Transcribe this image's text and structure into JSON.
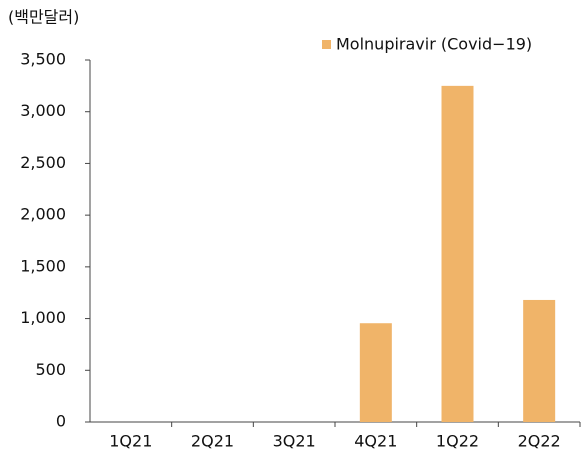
{
  "chart_data": {
    "type": "bar",
    "y_axis_label": "(백만달러)",
    "categories": [
      "1Q21",
      "2Q21",
      "3Q21",
      "4Q21",
      "1Q22",
      "2Q22"
    ],
    "series": [
      {
        "name": "Molnupiravir (Covid−19)",
        "color": "#f0b469",
        "values": [
          0,
          0,
          0,
          955,
          3250,
          1180
        ]
      }
    ],
    "ylim": [
      0,
      3500
    ],
    "yticks": [
      0,
      500,
      {
        "value": 1000,
        "label": "1,000"
      },
      {
        "value": 1500,
        "label": "1,500"
      },
      {
        "value": 2000,
        "label": "2,000"
      },
      {
        "value": 2500,
        "label": "2,500"
      },
      {
        "value": 3000,
        "label": "3,000"
      },
      {
        "value": 3500,
        "label": "3,500"
      }
    ],
    "grid": false,
    "legend": "top-right"
  }
}
